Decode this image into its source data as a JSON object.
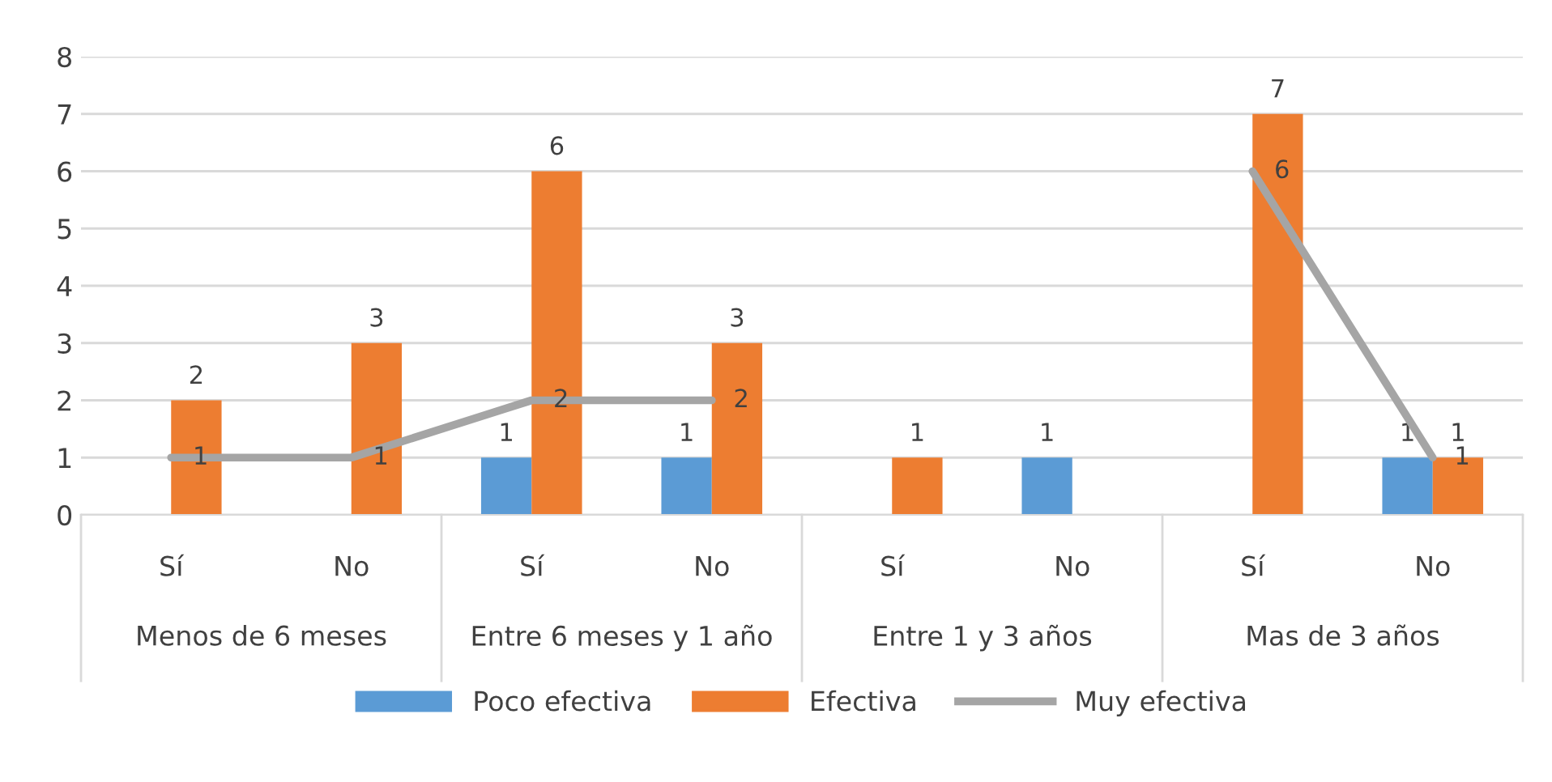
{
  "chart_data": {
    "type": "bar",
    "categories": [
      "Sí",
      "No",
      "Sí",
      "No",
      "Sí",
      "No",
      "Sí",
      "No"
    ],
    "annotations": [
      "Menos de 6 meses",
      "Entre 6 meses y 1 año",
      "Entre 1 y 3 años",
      "Mas de 3 años"
    ],
    "series": [
      {
        "name": "Poco efectiva",
        "color": "#5b9bd5",
        "values": [
          null,
          null,
          1,
          1,
          null,
          1,
          null,
          1
        ]
      },
      {
        "name": "Efectiva",
        "color": "#ed7d31",
        "values": [
          2,
          3,
          6,
          3,
          1,
          null,
          7,
          1
        ]
      },
      {
        "name": "Muy efectiva",
        "type": "line",
        "color": "#a5a5a5",
        "values": [
          1,
          1,
          2,
          2,
          null,
          null,
          6,
          1
        ]
      }
    ],
    "ylim": [
      0,
      8
    ],
    "yticks": [
      0,
      1,
      2,
      3,
      4,
      5,
      6,
      7,
      8
    ],
    "grid": "y",
    "legend": "bottom",
    "data_labels": true,
    "marker": "none",
    "line_style": "solid"
  }
}
